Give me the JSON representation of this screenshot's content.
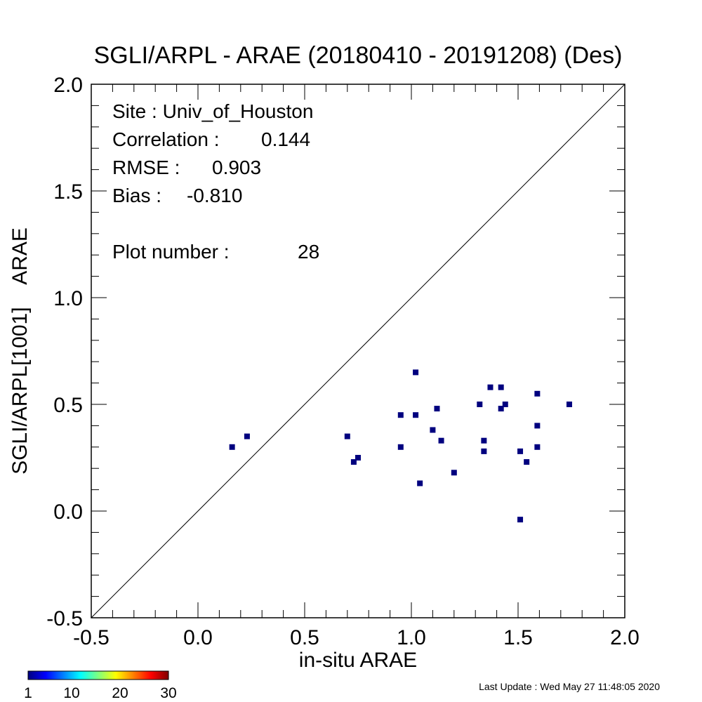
{
  "chart_data": {
    "type": "scatter",
    "title": "SGLI/ARPL - ARAE (20180410 - 20191208) (Des)",
    "xlabel": "in-situ ARAE",
    "ylabel": "SGLI/ARPL[1001]    ARAE",
    "xlim": [
      -0.5,
      2.0
    ],
    "ylim": [
      -0.5,
      2.0
    ],
    "x_ticks": [
      "-0.5",
      "0.0",
      "0.5",
      "1.0",
      "1.5",
      "2.0"
    ],
    "y_ticks": [
      "-0.5",
      "0.0",
      "0.5",
      "1.0",
      "1.5",
      "2.0"
    ],
    "reference_line": "1:1",
    "marker_color": "#00007f",
    "points": [
      {
        "x": 0.16,
        "y": 0.3
      },
      {
        "x": 0.23,
        "y": 0.35
      },
      {
        "x": 0.7,
        "y": 0.35
      },
      {
        "x": 0.73,
        "y": 0.23
      },
      {
        "x": 0.75,
        "y": 0.25
      },
      {
        "x": 0.95,
        "y": 0.45
      },
      {
        "x": 0.95,
        "y": 0.3
      },
      {
        "x": 1.02,
        "y": 0.65
      },
      {
        "x": 1.02,
        "y": 0.45
      },
      {
        "x": 1.04,
        "y": 0.13
      },
      {
        "x": 1.1,
        "y": 0.38
      },
      {
        "x": 1.12,
        "y": 0.48
      },
      {
        "x": 1.14,
        "y": 0.33
      },
      {
        "x": 1.2,
        "y": 0.18
      },
      {
        "x": 1.32,
        "y": 0.5
      },
      {
        "x": 1.34,
        "y": 0.33
      },
      {
        "x": 1.34,
        "y": 0.28
      },
      {
        "x": 1.37,
        "y": 0.58
      },
      {
        "x": 1.42,
        "y": 0.58
      },
      {
        "x": 1.42,
        "y": 0.48
      },
      {
        "x": 1.44,
        "y": 0.5
      },
      {
        "x": 1.51,
        "y": 0.28
      },
      {
        "x": 1.51,
        "y": -0.04
      },
      {
        "x": 1.54,
        "y": 0.23
      },
      {
        "x": 1.59,
        "y": 0.55
      },
      {
        "x": 1.59,
        "y": 0.4
      },
      {
        "x": 1.59,
        "y": 0.3
      },
      {
        "x": 1.74,
        "y": 0.5
      }
    ]
  },
  "stats": {
    "site": "Site : Univ_of_Houston",
    "correlation_label": "Correlation :",
    "correlation_value": "0.144",
    "rmse_label": "RMSE :",
    "rmse_value": "0.903",
    "bias_label": "Bias :",
    "bias_value": "-0.810",
    "plot_number_label": "Plot number :",
    "plot_number_value": "28"
  },
  "colorbar": {
    "ticks": [
      "1",
      "10",
      "20",
      "30"
    ],
    "colors": [
      "#00007f",
      "#0000ff",
      "#007fff",
      "#00ffff",
      "#7fff7f",
      "#ffff00",
      "#ff7f00",
      "#ff0000",
      "#7f0000"
    ]
  },
  "footer": {
    "last_update": "Last Update : Wed May 27 11:48:05 2020"
  }
}
